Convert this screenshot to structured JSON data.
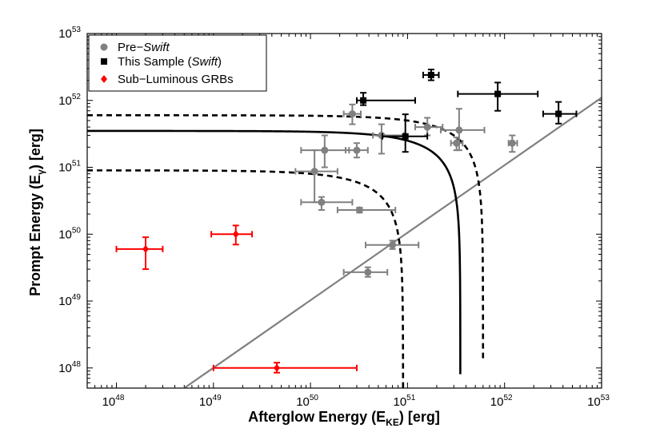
{
  "chart_data": {
    "type": "scatter",
    "xscale": "log",
    "yscale": "log",
    "xlim": [
      5e+47,
      1e+53
    ],
    "ylim": [
      5e+47,
      1e+53
    ],
    "xlabel": {
      "main": "Afterglow Energy (E",
      "sub": "KE",
      "tail": ") [erg]"
    },
    "ylabel": {
      "main": "Prompt Energy (E",
      "sub": "γ",
      "tail": ") [erg]"
    },
    "x_ticks": [
      {
        "value": 1e+48,
        "base": "10",
        "exp": "48"
      },
      {
        "value": 1e+49,
        "base": "10",
        "exp": "49"
      },
      {
        "value": 1e+50,
        "base": "10",
        "exp": "50"
      },
      {
        "value": 1e+51,
        "base": "10",
        "exp": "51"
      },
      {
        "value": 1e+52,
        "base": "10",
        "exp": "52"
      },
      {
        "value": 1e+53,
        "base": "10",
        "exp": "53"
      }
    ],
    "y_ticks": [
      {
        "value": 1e+48,
        "base": "10",
        "exp": "48"
      },
      {
        "value": 1e+49,
        "base": "10",
        "exp": "49"
      },
      {
        "value": 1e+50,
        "base": "10",
        "exp": "50"
      },
      {
        "value": 1e+51,
        "base": "10",
        "exp": "51"
      },
      {
        "value": 1e+52,
        "base": "10",
        "exp": "52"
      },
      {
        "value": 1e+53,
        "base": "10",
        "exp": "53"
      }
    ],
    "legend": {
      "position": "top-left",
      "entries": [
        {
          "key": "pre_swift",
          "prefix": "Pre−",
          "emph": "Swift",
          "suffix": ""
        },
        {
          "key": "this_sample",
          "prefix": "This Sample (",
          "emph": "Swift",
          "suffix": ")"
        },
        {
          "key": "sub_luminous",
          "prefix": "Sub−Luminous GRBs",
          "emph": "",
          "suffix": ""
        }
      ]
    },
    "series": [
      {
        "name": "Pre-Swift",
        "key": "pre_swift",
        "color": "#808080",
        "marker": "circle",
        "points": [
          {
            "x": 2.7e+50,
            "y": 6.3e+51,
            "xerr": [
              2.2e+50,
              3.3e+50
            ],
            "yerr": [
              4.4e+51,
              8.7e+51
            ]
          },
          {
            "x": 5.4e+50,
            "y": 3e+51,
            "xerr": [
              4.4e+50,
              9.2e+50
            ],
            "yerr": [
              1.6e+51,
              4.4e+51
            ]
          },
          {
            "x": 1.6e+51,
            "y": 4e+51,
            "xerr": [
              1.2e+51,
              2.3e+51
            ],
            "yerr": [
              3e+51,
              5.5e+51
            ]
          },
          {
            "x": 3.4e+51,
            "y": 3.6e+51,
            "xerr": [
              2.2e+51,
              6.2e+51
            ],
            "yerr": [
              1.8e+51,
              7.5e+51
            ]
          },
          {
            "x": 3.2e+51,
            "y": 2.3e+51,
            "xerr": [
              2.8e+51,
              3.7e+51
            ],
            "yerr": [
              1.8e+51,
              2.8e+51
            ]
          },
          {
            "x": 1.2e+52,
            "y": 2.3e+51,
            "xerr": [
              1.1e+52,
              1.35e+52
            ],
            "yerr": [
              1.7e+51,
              3e+51
            ]
          },
          {
            "x": 1.4e+50,
            "y": 1.8e+51,
            "xerr": [
              8e+49,
              2.5e+50
            ],
            "yerr": [
              1e+51,
              3e+51
            ]
          },
          {
            "x": 3e+50,
            "y": 1.8e+51,
            "xerr": [
              2.3e+50,
              3.9e+50
            ],
            "yerr": [
              1.4e+51,
              2.3e+51
            ]
          },
          {
            "x": 1.1e+50,
            "y": 8.7e+50,
            "xerr": [
              7e+49,
              1.9e+50
            ],
            "yerr": [
              3e+50,
              1.8e+51
            ]
          },
          {
            "x": 1.3e+50,
            "y": 3e+50,
            "xerr": [
              8e+49,
              2.7e+50
            ],
            "yerr": [
              2.3e+50,
              3.6e+50
            ]
          },
          {
            "x": 3.2e+50,
            "y": 2.3e+50,
            "xerr": [
              1.9e+50,
              7.5e+50
            ],
            "yerr": [
              2.1e+50,
              2.5e+50
            ]
          },
          {
            "x": 7e+50,
            "y": 6.9e+49,
            "xerr": [
              3.7e+50,
              1.3e+51
            ],
            "yerr": [
              6e+49,
              8e+49
            ]
          },
          {
            "x": 3.9e+50,
            "y": 2.7e+49,
            "xerr": [
              2.2e+50,
              6.2e+50
            ],
            "yerr": [
              2.3e+49,
              3.2e+49
            ]
          }
        ]
      },
      {
        "name": "This Sample (Swift)",
        "key": "this_sample",
        "color": "#000000",
        "marker": "square",
        "points": [
          {
            "x": 3.5e+50,
            "y": 1e+52,
            "xerr": [
              3e+50,
              1.2e+51
            ],
            "yerr": [
              8.5e+51,
              1.3e+52
            ]
          },
          {
            "x": 1.75e+51,
            "y": 2.4e+52,
            "xerr": [
              1.45e+51,
              2.1e+51
            ],
            "yerr": [
              2e+52,
              2.9e+52
            ]
          },
          {
            "x": 8.5e+51,
            "y": 1.25e+52,
            "xerr": [
              3.3e+51,
              2.2e+52
            ],
            "yerr": [
              7e+51,
              1.85e+52
            ]
          },
          {
            "x": 3.6e+52,
            "y": 6.3e+51,
            "xerr": [
              2.5e+52,
              5.5e+52
            ],
            "yerr": [
              4.5e+51,
              9.5e+51
            ]
          },
          {
            "x": 9.5e+50,
            "y": 2.9e+51,
            "xerr": [
              5.5e+50,
              1.6e+51
            ],
            "yerr": [
              1.7e+51,
              6.2e+51
            ]
          }
        ]
      },
      {
        "name": "Sub-Luminous GRBs",
        "key": "sub_luminous",
        "color": "#ff0000",
        "marker": "diamond",
        "points": [
          {
            "x": 2e+48,
            "y": 6e+49,
            "xerr": [
              1e+48,
              3e+48
            ],
            "yerr": [
              3e+49,
              9e+49
            ]
          },
          {
            "x": 1.7e+49,
            "y": 1e+50,
            "xerr": [
              9.5e+48,
              2.5e+49
            ],
            "yerr": [
              7e+49,
              1.35e+50
            ]
          },
          {
            "x": 4.5e+49,
            "y": 1e+48,
            "xerr": [
              1e+49,
              3e+50
            ],
            "yerr": [
              8.5e+47,
              1.2e+48
            ]
          }
        ]
      }
    ],
    "curves": [
      {
        "name": "equality line",
        "style": "gray",
        "type": "line",
        "from": [
          5e+48,
          5e+47
        ],
        "to": [
          1e+53,
          1.1e+52
        ]
      },
      {
        "name": "total energy 3.5e51",
        "style": "solid",
        "type": "sum",
        "total": 3.5e+51
      },
      {
        "name": "total energy 6e51",
        "style": "dashed",
        "type": "sum",
        "total": 6e+51
      },
      {
        "name": "total energy 9e50",
        "style": "dashed",
        "type": "sum",
        "total": 9e+50
      }
    ]
  }
}
